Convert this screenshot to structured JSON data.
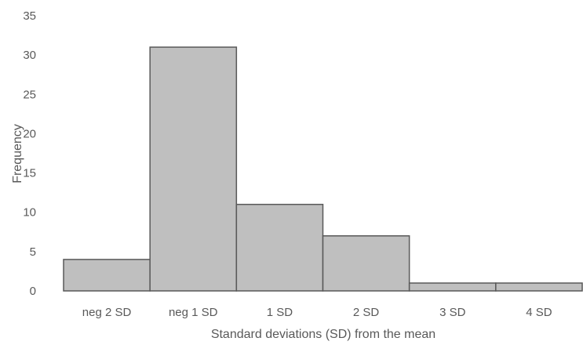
{
  "chart_data": {
    "type": "bar",
    "title": "",
    "xlabel": "Standard deviations (SD) from the mean",
    "ylabel": "Frequency",
    "categories": [
      "neg 2 SD",
      "neg 1 SD",
      "1 SD",
      "2 SD",
      "3 SD",
      "4 SD"
    ],
    "values": [
      4,
      31,
      11,
      7,
      1,
      1
    ],
    "ylim": [
      0,
      35
    ],
    "yticks": [
      "0",
      "5",
      "10",
      "15",
      "20",
      "25",
      "30",
      "35"
    ],
    "grid": false,
    "legend": "none",
    "bar_color": "#bfbfbf",
    "bar_edge_color": "#595959",
    "text_color": "#595959"
  }
}
